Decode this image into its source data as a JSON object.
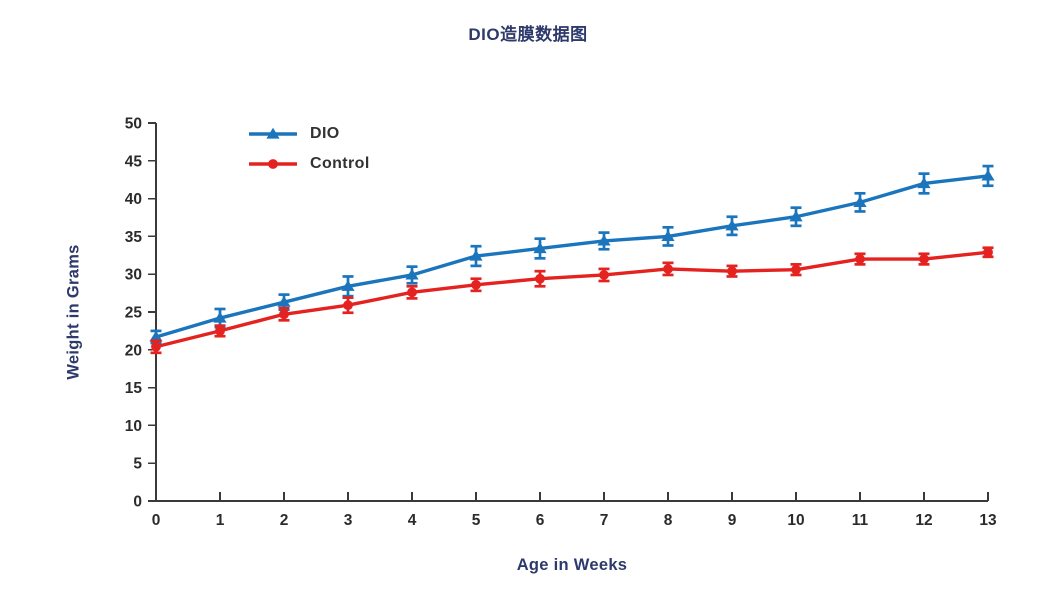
{
  "chart_data": {
    "type": "line",
    "title": "DIO造膜数据图",
    "xlabel": "Age in Weeks",
    "ylabel": "Weight in Grams",
    "x": [
      0,
      1,
      2,
      3,
      4,
      5,
      6,
      7,
      8,
      9,
      10,
      11,
      12,
      13
    ],
    "x_ticks": [
      0,
      1,
      2,
      3,
      4,
      5,
      6,
      7,
      8,
      9,
      10,
      11,
      12,
      13
    ],
    "y_ticks": [
      0,
      5,
      10,
      15,
      20,
      25,
      30,
      35,
      40,
      45,
      50
    ],
    "xlim": [
      0,
      13
    ],
    "ylim": [
      0,
      50
    ],
    "grid": false,
    "error_bars": true,
    "legend_position": "top-left-inside",
    "series": [
      {
        "name": "DIO",
        "marker": "triangle",
        "color": "#1b75bc",
        "values": [
          21.7,
          24.2,
          26.3,
          28.4,
          29.9,
          32.4,
          33.4,
          34.4,
          35.0,
          36.4,
          37.6,
          39.5,
          42.0,
          43.0
        ],
        "errors": [
          0.8,
          1.2,
          1.0,
          1.3,
          1.1,
          1.3,
          1.3,
          1.1,
          1.2,
          1.2,
          1.2,
          1.2,
          1.3,
          1.3
        ]
      },
      {
        "name": "Control",
        "marker": "circle",
        "color": "#e42320",
        "values": [
          20.4,
          22.5,
          24.7,
          25.9,
          27.6,
          28.6,
          29.4,
          29.9,
          30.7,
          30.4,
          30.6,
          32.0,
          32.0,
          32.9
        ],
        "errors": [
          0.8,
          0.7,
          0.8,
          1.0,
          0.8,
          0.8,
          1.0,
          0.8,
          0.8,
          0.7,
          0.7,
          0.7,
          0.7,
          0.6
        ]
      }
    ],
    "colors": {
      "title": "#2d3a6b",
      "axis_titles": "#2d3a6b",
      "axis_line": "#3a3a3a",
      "tick_text": "#2b2b2b",
      "legend_text": "#333333"
    }
  }
}
